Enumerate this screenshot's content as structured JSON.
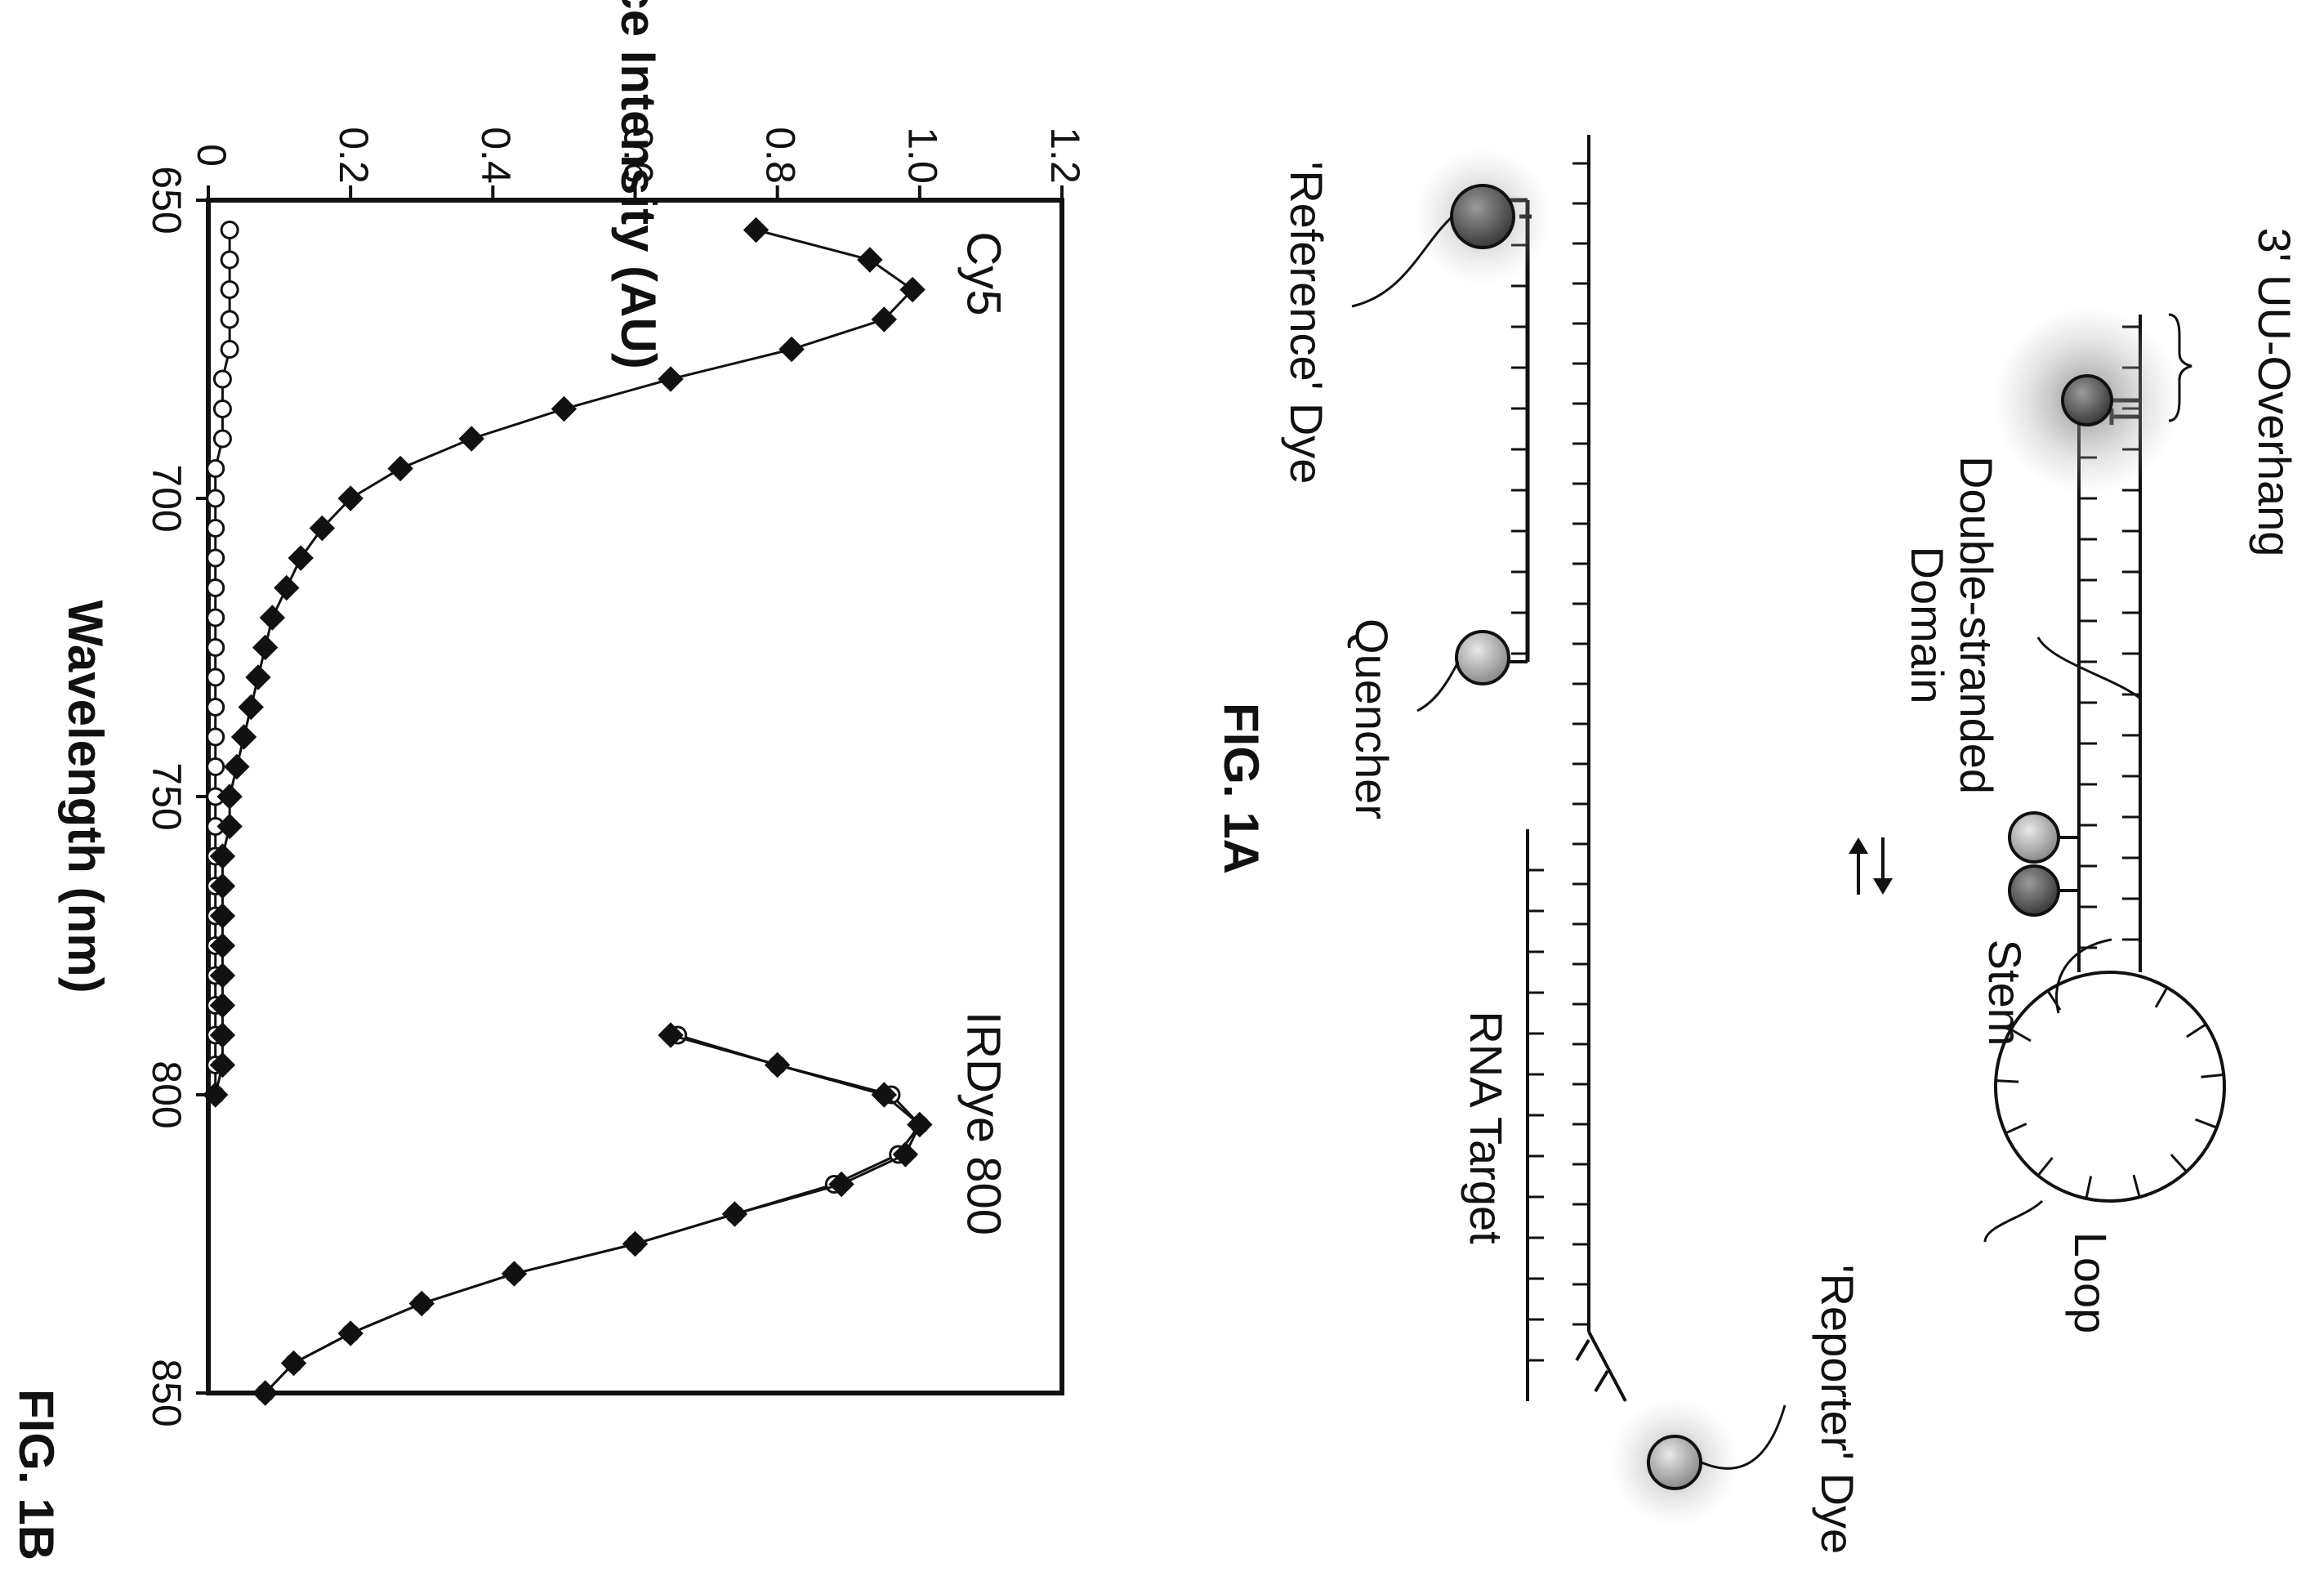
{
  "figure_1b_label": "FIG. 1B",
  "figure_1a_label": "FIG. 1A",
  "chart_data": {
    "type": "line",
    "title": "",
    "xlabel": "Wavelength (nm)",
    "ylabel": "Fluorescence Intensity (AU)",
    "xlim": [
      650,
      850
    ],
    "ylim": [
      0,
      1.2
    ],
    "x_ticks": [
      "650",
      "700",
      "750",
      "800",
      "850"
    ],
    "y_ticks": [
      "0",
      "0.2",
      "0.4",
      "0.6",
      "0.8",
      "1.0",
      "1.2"
    ],
    "orientation": "rotated 90 degrees clockwise on the page",
    "grid": false,
    "annotations": [
      "Cy5",
      "IRDye 800"
    ],
    "series": [
      {
        "marker": "filled-diamond",
        "x": [
          655,
          660,
          665,
          670,
          675,
          680,
          685,
          690,
          695,
          700,
          705,
          710,
          715,
          720,
          725,
          730,
          735,
          740,
          745,
          750,
          755,
          760,
          765,
          770,
          775,
          780,
          785,
          790,
          795,
          800
        ],
        "values": [
          0.77,
          0.93,
          0.99,
          0.95,
          0.82,
          0.65,
          0.5,
          0.37,
          0.27,
          0.2,
          0.16,
          0.13,
          0.11,
          0.09,
          0.08,
          0.07,
          0.06,
          0.05,
          0.04,
          0.03,
          0.03,
          0.02,
          0.02,
          0.02,
          0.02,
          0.02,
          0.02,
          0.02,
          0.02,
          0.01
        ]
      },
      {
        "marker": "open-circle",
        "x": [
          655,
          660,
          665,
          670,
          675,
          680,
          685,
          690,
          695,
          700,
          705,
          710,
          715,
          720,
          725,
          730,
          735,
          740,
          745,
          750,
          755,
          760,
          765,
          770,
          775,
          780,
          785,
          790,
          795,
          800
        ],
        "values": [
          0.03,
          0.03,
          0.03,
          0.03,
          0.03,
          0.02,
          0.02,
          0.02,
          0.01,
          0.01,
          0.01,
          0.01,
          0.01,
          0.01,
          0.01,
          0.01,
          0.01,
          0.01,
          0.01,
          0.01,
          0.01,
          0.01,
          0.01,
          0.01,
          0.01,
          0.01,
          0.01,
          0.01,
          0.01,
          0.01
        ]
      },
      {
        "marker": "filled-diamond",
        "x": [
          790,
          795,
          800,
          805,
          810,
          815,
          820,
          825,
          830,
          835,
          840,
          845,
          850
        ],
        "values": [
          0.65,
          0.8,
          0.95,
          1.0,
          0.98,
          0.89,
          0.74,
          0.6,
          0.43,
          0.3,
          0.2,
          0.12,
          0.08
        ]
      },
      {
        "marker": "open-circle",
        "x": [
          790,
          795,
          800,
          805,
          810,
          815,
          820,
          825,
          830,
          835,
          840,
          845,
          850
        ],
        "values": [
          0.66,
          0.8,
          0.96,
          1.0,
          0.97,
          0.88,
          0.74,
          0.6,
          0.43,
          0.3,
          0.2,
          0.12,
          0.08
        ]
      }
    ]
  },
  "diagram_1a": {
    "labels": {
      "overhang": "3' UU-Overhang",
      "ds_domain_line1": "Double-stranded",
      "ds_domain_line2": "Domain",
      "stem": "Stem",
      "loop": "Loop",
      "rna_target": "RNA Target",
      "reference_dye": "'Reference' Dye",
      "quencher": "Quencher",
      "reporter_dye": "'Reporter' Dye"
    }
  }
}
